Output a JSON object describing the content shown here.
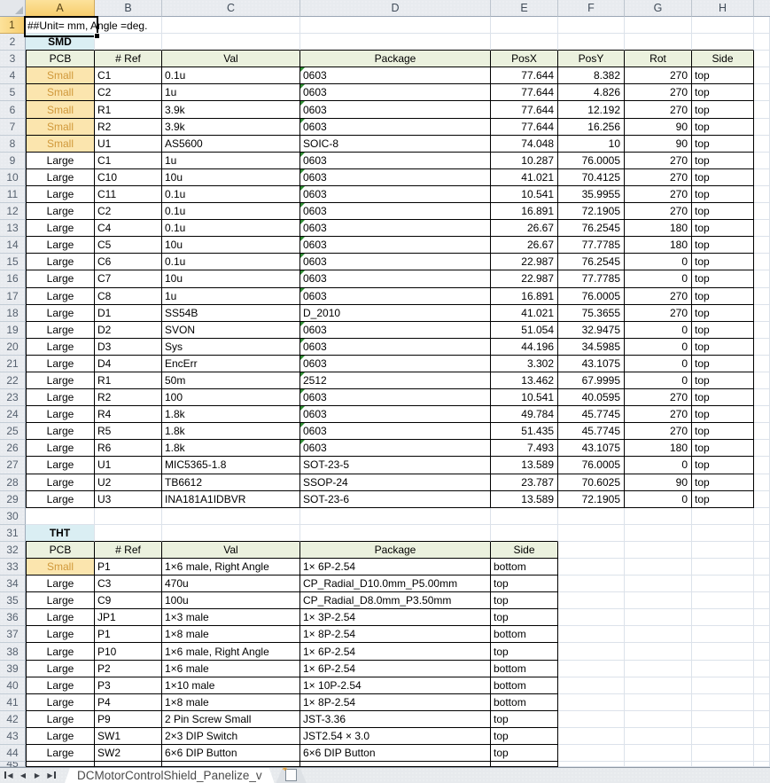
{
  "a1_text": "##Unit= mm, Angle =deg.",
  "column_letters": [
    "A",
    "B",
    "C",
    "D",
    "E",
    "F",
    "G",
    "H"
  ],
  "smd": {
    "section_label": "SMD",
    "headers": [
      "PCB",
      "# Ref",
      "Val",
      "Package",
      "PosX",
      "PosY",
      "Rot",
      "Side"
    ],
    "rows": [
      {
        "pcb": "Small",
        "ref": "C1",
        "val": "0.1u",
        "pkg": "0603",
        "flag": true,
        "posx": "77.644",
        "posy": "8.382",
        "rot": "270",
        "side": "top"
      },
      {
        "pcb": "Small",
        "ref": "C2",
        "val": "1u",
        "pkg": "0603",
        "flag": true,
        "posx": "77.644",
        "posy": "4.826",
        "rot": "270",
        "side": "top"
      },
      {
        "pcb": "Small",
        "ref": "R1",
        "val": "3.9k",
        "pkg": "0603",
        "flag": true,
        "posx": "77.644",
        "posy": "12.192",
        "rot": "270",
        "side": "top"
      },
      {
        "pcb": "Small",
        "ref": "R2",
        "val": "3.9k",
        "pkg": "0603",
        "flag": true,
        "posx": "77.644",
        "posy": "16.256",
        "rot": "90",
        "side": "top"
      },
      {
        "pcb": "Small",
        "ref": "U1",
        "val": "AS5600",
        "pkg": "SOIC-8",
        "flag": false,
        "posx": "74.048",
        "posy": "10",
        "rot": "90",
        "side": "top"
      },
      {
        "pcb": "Large",
        "ref": "C1",
        "val": "1u",
        "pkg": "0603",
        "flag": true,
        "posx": "10.287",
        "posy": "76.0005",
        "rot": "270",
        "side": "top"
      },
      {
        "pcb": "Large",
        "ref": "C10",
        "val": "10u",
        "pkg": "0603",
        "flag": true,
        "posx": "41.021",
        "posy": "70.4125",
        "rot": "270",
        "side": "top"
      },
      {
        "pcb": "Large",
        "ref": "C11",
        "val": "0.1u",
        "pkg": "0603",
        "flag": true,
        "posx": "10.541",
        "posy": "35.9955",
        "rot": "270",
        "side": "top"
      },
      {
        "pcb": "Large",
        "ref": "C2",
        "val": "0.1u",
        "pkg": "0603",
        "flag": true,
        "posx": "16.891",
        "posy": "72.1905",
        "rot": "270",
        "side": "top"
      },
      {
        "pcb": "Large",
        "ref": "C4",
        "val": "0.1u",
        "pkg": "0603",
        "flag": true,
        "posx": "26.67",
        "posy": "76.2545",
        "rot": "180",
        "side": "top"
      },
      {
        "pcb": "Large",
        "ref": "C5",
        "val": "10u",
        "pkg": "0603",
        "flag": true,
        "posx": "26.67",
        "posy": "77.7785",
        "rot": "180",
        "side": "top"
      },
      {
        "pcb": "Large",
        "ref": "C6",
        "val": "0.1u",
        "pkg": "0603",
        "flag": true,
        "posx": "22.987",
        "posy": "76.2545",
        "rot": "0",
        "side": "top"
      },
      {
        "pcb": "Large",
        "ref": "C7",
        "val": "10u",
        "pkg": "0603",
        "flag": true,
        "posx": "22.987",
        "posy": "77.7785",
        "rot": "0",
        "side": "top"
      },
      {
        "pcb": "Large",
        "ref": "C8",
        "val": "1u",
        "pkg": "0603",
        "flag": true,
        "posx": "16.891",
        "posy": "76.0005",
        "rot": "270",
        "side": "top"
      },
      {
        "pcb": "Large",
        "ref": "D1",
        "val": "SS54B",
        "pkg": "D_2010",
        "flag": false,
        "posx": "41.021",
        "posy": "75.3655",
        "rot": "270",
        "side": "top"
      },
      {
        "pcb": "Large",
        "ref": "D2",
        "val": "SVON",
        "pkg": "0603",
        "flag": true,
        "posx": "51.054",
        "posy": "32.9475",
        "rot": "0",
        "side": "top"
      },
      {
        "pcb": "Large",
        "ref": "D3",
        "val": "Sys",
        "pkg": "0603",
        "flag": true,
        "posx": "44.196",
        "posy": "34.5985",
        "rot": "0",
        "side": "top"
      },
      {
        "pcb": "Large",
        "ref": "D4",
        "val": "EncErr",
        "pkg": "0603",
        "flag": true,
        "posx": "3.302",
        "posy": "43.1075",
        "rot": "0",
        "side": "top"
      },
      {
        "pcb": "Large",
        "ref": "R1",
        "val": "50m",
        "pkg": "2512",
        "flag": true,
        "posx": "13.462",
        "posy": "67.9995",
        "rot": "0",
        "side": "top"
      },
      {
        "pcb": "Large",
        "ref": "R2",
        "val": "100",
        "pkg": "0603",
        "flag": true,
        "posx": "10.541",
        "posy": "40.0595",
        "rot": "270",
        "side": "top"
      },
      {
        "pcb": "Large",
        "ref": "R4",
        "val": "1.8k",
        "pkg": "0603",
        "flag": true,
        "posx": "49.784",
        "posy": "45.7745",
        "rot": "270",
        "side": "top"
      },
      {
        "pcb": "Large",
        "ref": "R5",
        "val": "1.8k",
        "pkg": "0603",
        "flag": true,
        "posx": "51.435",
        "posy": "45.7745",
        "rot": "270",
        "side": "top"
      },
      {
        "pcb": "Large",
        "ref": "R6",
        "val": "1.8k",
        "pkg": "0603",
        "flag": true,
        "posx": "7.493",
        "posy": "43.1075",
        "rot": "180",
        "side": "top"
      },
      {
        "pcb": "Large",
        "ref": "U1",
        "val": "MIC5365-1.8",
        "pkg": "SOT-23-5",
        "flag": false,
        "posx": "13.589",
        "posy": "76.0005",
        "rot": "0",
        "side": "top"
      },
      {
        "pcb": "Large",
        "ref": "U2",
        "val": "TB6612",
        "pkg": "SSOP-24",
        "flag": false,
        "posx": "23.787",
        "posy": "70.6025",
        "rot": "90",
        "side": "top"
      },
      {
        "pcb": "Large",
        "ref": "U3",
        "val": "INA181A1IDBVR",
        "pkg": "SOT-23-6",
        "flag": false,
        "posx": "13.589",
        "posy": "72.1905",
        "rot": "0",
        "side": "top"
      }
    ]
  },
  "tht": {
    "section_label": "THT",
    "headers": [
      "PCB",
      "# Ref",
      "Val",
      "Package",
      "Side"
    ],
    "rows": [
      {
        "pcb": "Small",
        "ref": "P1",
        "val": "1×6 male, Right Angle",
        "pkg": "1× 6P-2.54",
        "side": "bottom"
      },
      {
        "pcb": "Large",
        "ref": "C3",
        "val": "470u",
        "pkg": "CP_Radial_D10.0mm_P5.00mm",
        "side": "top"
      },
      {
        "pcb": "Large",
        "ref": "C9",
        "val": "100u",
        "pkg": "CP_Radial_D8.0mm_P3.50mm",
        "side": "top"
      },
      {
        "pcb": "Large",
        "ref": "JP1",
        "val": "1×3 male",
        "pkg": "1× 3P-2.54",
        "side": "top"
      },
      {
        "pcb": "Large",
        "ref": "P1",
        "val": "1×8 male",
        "pkg": "1× 8P-2.54",
        "side": "bottom"
      },
      {
        "pcb": "Large",
        "ref": "P10",
        "val": "1×6 male, Right Angle",
        "pkg": "1× 6P-2.54",
        "side": "top"
      },
      {
        "pcb": "Large",
        "ref": "P2",
        "val": "1×6 male",
        "pkg": "1× 6P-2.54",
        "side": "bottom"
      },
      {
        "pcb": "Large",
        "ref": "P3",
        "val": "1×10 male",
        "pkg": "1× 10P-2.54",
        "side": "bottom"
      },
      {
        "pcb": "Large",
        "ref": "P4",
        "val": "1×8 male",
        "pkg": "1× 8P-2.54",
        "side": "bottom"
      },
      {
        "pcb": "Large",
        "ref": "P9",
        "val": "2 Pin Screw Small",
        "pkg": "JST-3.36",
        "side": "top"
      },
      {
        "pcb": "Large",
        "ref": "SW1",
        "val": "2×3 DIP Switch",
        "pkg": "JST2.54 × 3.0",
        "side": "top"
      },
      {
        "pcb": "Large",
        "ref": "SW2",
        "val": "6×6 DIP Button",
        "pkg": "6×6 DIP Button",
        "side": "top"
      }
    ]
  },
  "tabbar": {
    "sheet_label": "DCMotorControlShield_Panelize_v",
    "prev_icon": "◀",
    "next_icon": "▶",
    "new_sheet_star_icon": "✱"
  },
  "colors": {
    "small_bg": "#fbe5ae",
    "small_text": "#d0983a",
    "section_bg": "#daeef3",
    "table_header_bg": "#ebf1de",
    "flag_triangle": "#2e8b32",
    "selected_header_top": "#fce29b",
    "selected_header_bottom": "#f7cd6d",
    "selected_header_line": "#e39b34",
    "selection_border": "#000000"
  }
}
